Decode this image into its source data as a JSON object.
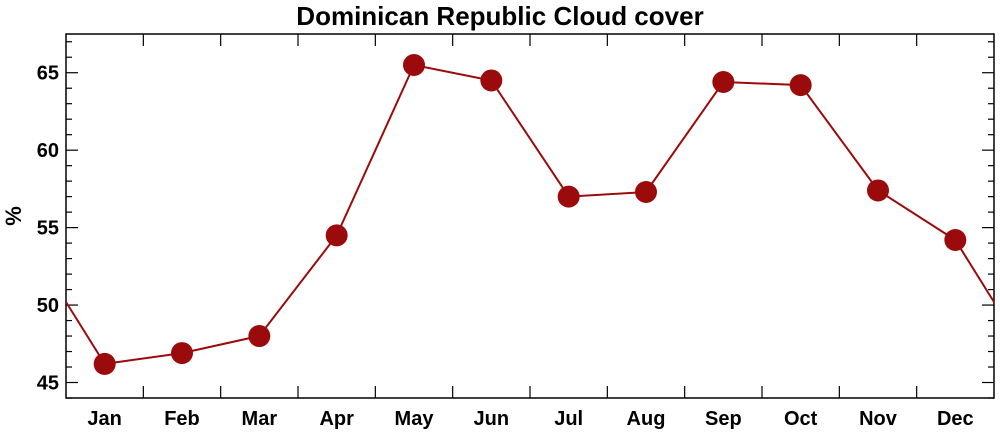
{
  "chart_data": {
    "type": "line",
    "title": "Dominican Republic Cloud cover",
    "ylabel": "%",
    "xlabel": "",
    "categories": [
      "Jan",
      "Feb",
      "Mar",
      "Apr",
      "May",
      "Jun",
      "Jul",
      "Aug",
      "Sep",
      "Oct",
      "Nov",
      "Dec"
    ],
    "values": [
      46.2,
      46.9,
      48.0,
      54.5,
      65.5,
      64.5,
      57.0,
      57.3,
      64.4,
      64.2,
      57.4,
      54.2
    ],
    "wrap_edge_value": 50.2,
    "ylim": [
      44,
      67.5
    ],
    "yticks": [
      45,
      50,
      55,
      60,
      65
    ],
    "color": "#9b0b0b",
    "grid": false,
    "legend": "none"
  }
}
